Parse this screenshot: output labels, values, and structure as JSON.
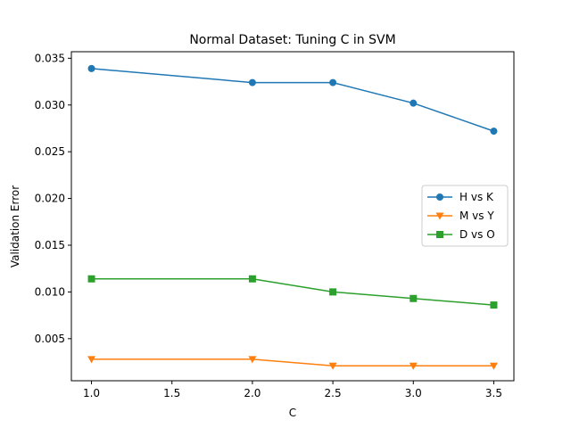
{
  "chart_data": {
    "type": "line",
    "title": "Normal Dataset: Tuning C in SVM",
    "xlabel": "C",
    "ylabel": "Validation Error",
    "x": [
      1.0,
      2.0,
      2.5,
      3.0,
      3.5
    ],
    "xlim": [
      0.875,
      3.625
    ],
    "ylim": [
      0.0005,
      0.0357
    ],
    "xticks": [
      1.0,
      1.5,
      2.0,
      2.5,
      3.0,
      3.5
    ],
    "xtick_labels": [
      "1.0",
      "1.5",
      "2.0",
      "2.5",
      "3.0",
      "3.5"
    ],
    "yticks": [
      0.005,
      0.01,
      0.015,
      0.02,
      0.025,
      0.03,
      0.035
    ],
    "ytick_labels": [
      "0.005",
      "0.010",
      "0.015",
      "0.020",
      "0.025",
      "0.030",
      "0.035"
    ],
    "grid": false,
    "legend_position": "center-right",
    "series": [
      {
        "name": "H vs K",
        "color": "#1f77b4",
        "marker": "circle",
        "values": [
          0.0339,
          0.0324,
          0.0324,
          0.0302,
          0.0272
        ]
      },
      {
        "name": "M vs Y",
        "color": "#ff7f0e",
        "marker": "triangle-down",
        "values": [
          0.0028,
          0.0028,
          0.0021,
          0.0021,
          0.0021
        ]
      },
      {
        "name": "D vs O",
        "color": "#2ca02c",
        "marker": "square",
        "values": [
          0.0114,
          0.0114,
          0.01,
          0.0093,
          0.0086
        ]
      }
    ]
  }
}
